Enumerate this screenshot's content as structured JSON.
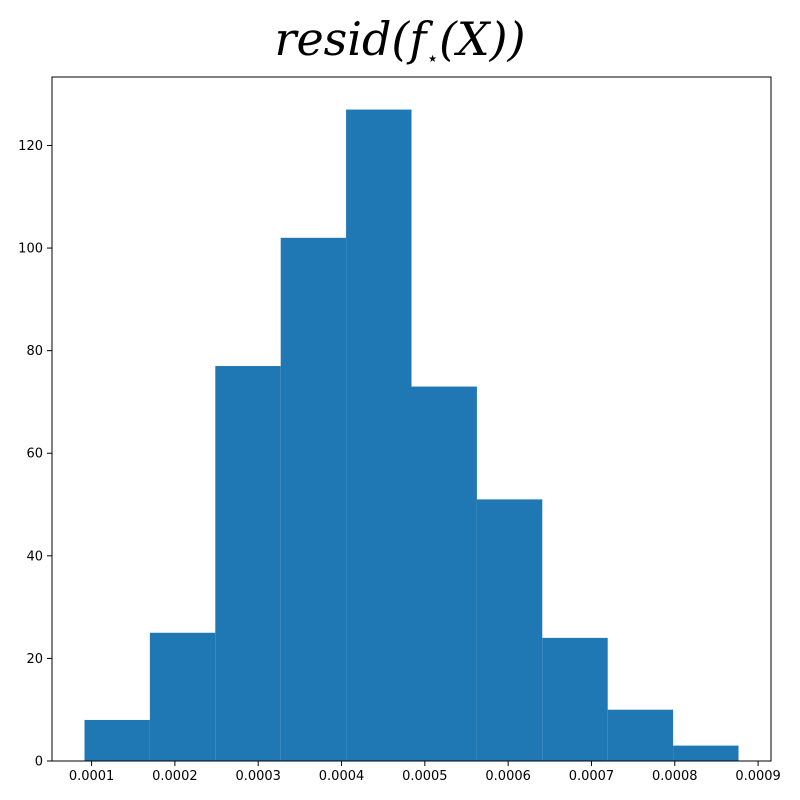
{
  "chart_data": {
    "type": "bar",
    "title": {
      "prefix": "resid(f",
      "subscript": "⋆",
      "suffix": "(X))"
    },
    "xlabel": "",
    "ylabel": "",
    "bins": [
      {
        "x0": 9.15e-05,
        "x1": 0.00017,
        "count": 8
      },
      {
        "x0": 0.00017,
        "x1": 0.0002485,
        "count": 25
      },
      {
        "x0": 0.0002485,
        "x1": 0.000327,
        "count": 77
      },
      {
        "x0": 0.000327,
        "x1": 0.0004055,
        "count": 102
      },
      {
        "x0": 0.0004055,
        "x1": 0.000484,
        "count": 127
      },
      {
        "x0": 0.000484,
        "x1": 0.0005625,
        "count": 73
      },
      {
        "x0": 0.0005625,
        "x1": 0.000641,
        "count": 51
      },
      {
        "x0": 0.000641,
        "x1": 0.0007195,
        "count": 24
      },
      {
        "x0": 0.0007195,
        "x1": 0.000798,
        "count": 10
      },
      {
        "x0": 0.000798,
        "x1": 0.0008765,
        "count": 3
      }
    ],
    "xlim": [
      5.25e-05,
      0.0009155
    ],
    "ylim": [
      0,
      133.35
    ],
    "xticks": [
      0.0001,
      0.0002,
      0.0003,
      0.0004,
      0.0005,
      0.0006,
      0.0007,
      0.0008,
      0.0009
    ],
    "xtick_labels": [
      "0.0001",
      "0.0002",
      "0.0003",
      "0.0004",
      "0.0005",
      "0.0006",
      "0.0007",
      "0.0008",
      "0.0009"
    ],
    "yticks": [
      0,
      20,
      40,
      60,
      80,
      100,
      120
    ],
    "ytick_labels": [
      "0",
      "20",
      "40",
      "60",
      "80",
      "100",
      "120"
    ],
    "bar_color": "#1f77b4",
    "grid": false,
    "legend": "none"
  }
}
